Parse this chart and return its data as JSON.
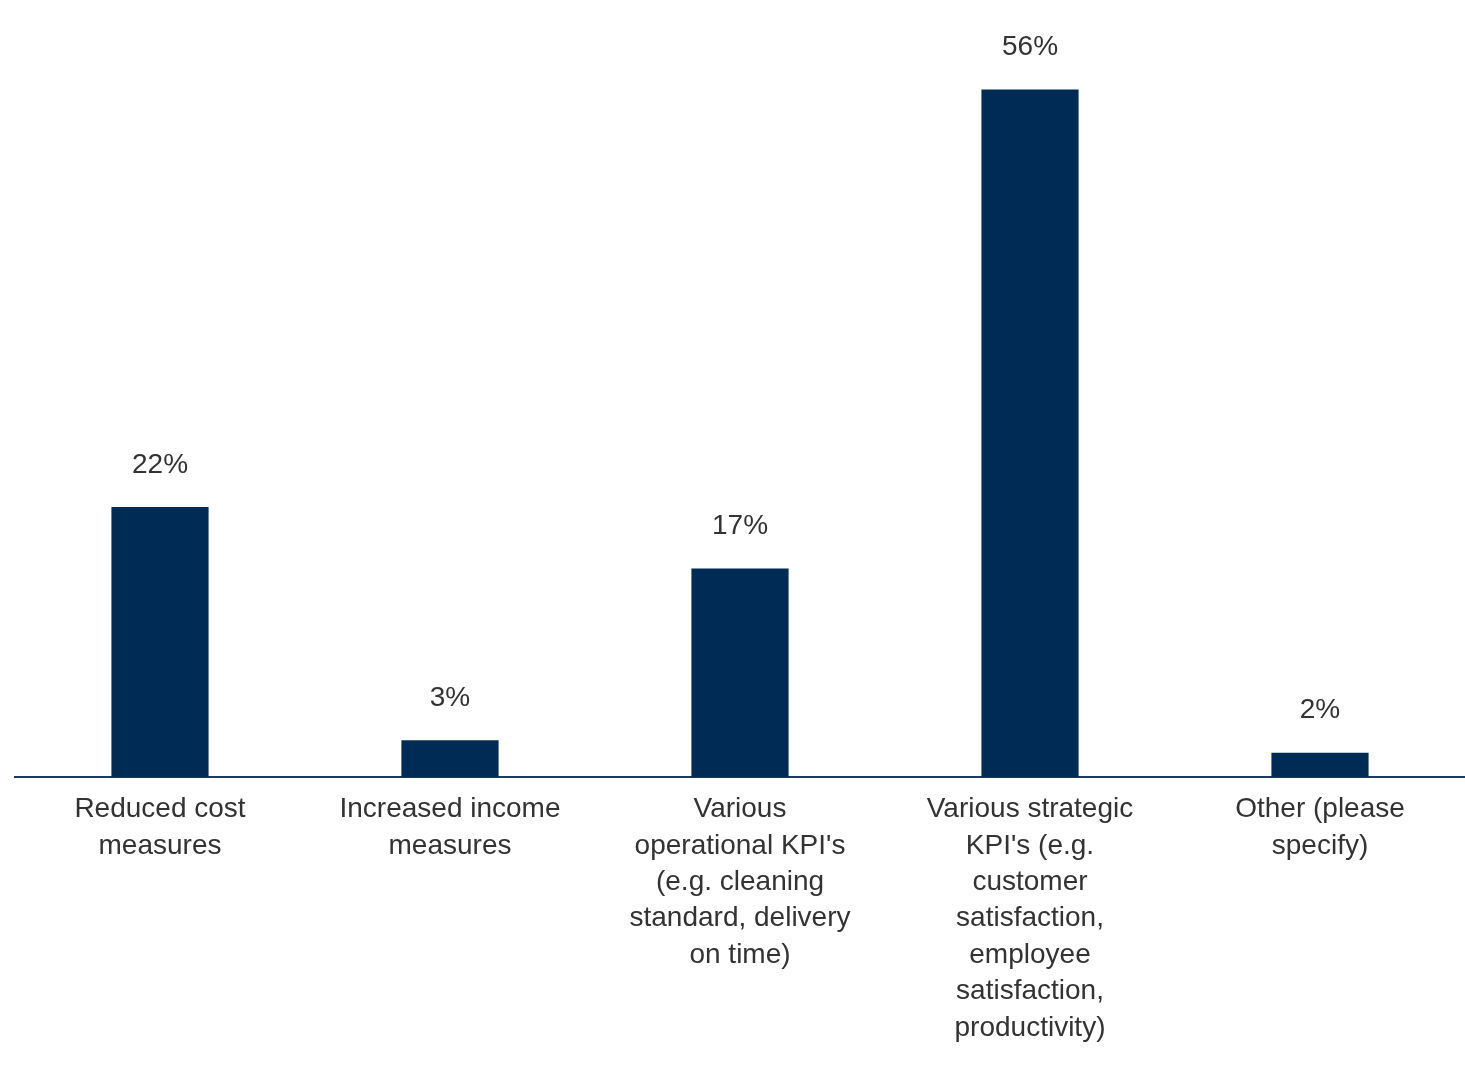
{
  "chart_data": {
    "type": "bar",
    "categories": [
      "Reduced cost measures",
      "Increased income measures",
      "Various operational KPI's (e.g. cleaning standard, delivery on time)",
      "Various strategic KPI's (e.g. customer satisfaction, employee satisfaction, productivity)",
      "Other (please specify)"
    ],
    "values": [
      22,
      3,
      17,
      56,
      2
    ],
    "value_labels": [
      "22%",
      "3%",
      "17%",
      "56%",
      "2%"
    ],
    "color": "#002b54",
    "grid": false,
    "legend": false,
    "tick_labels": "x"
  }
}
